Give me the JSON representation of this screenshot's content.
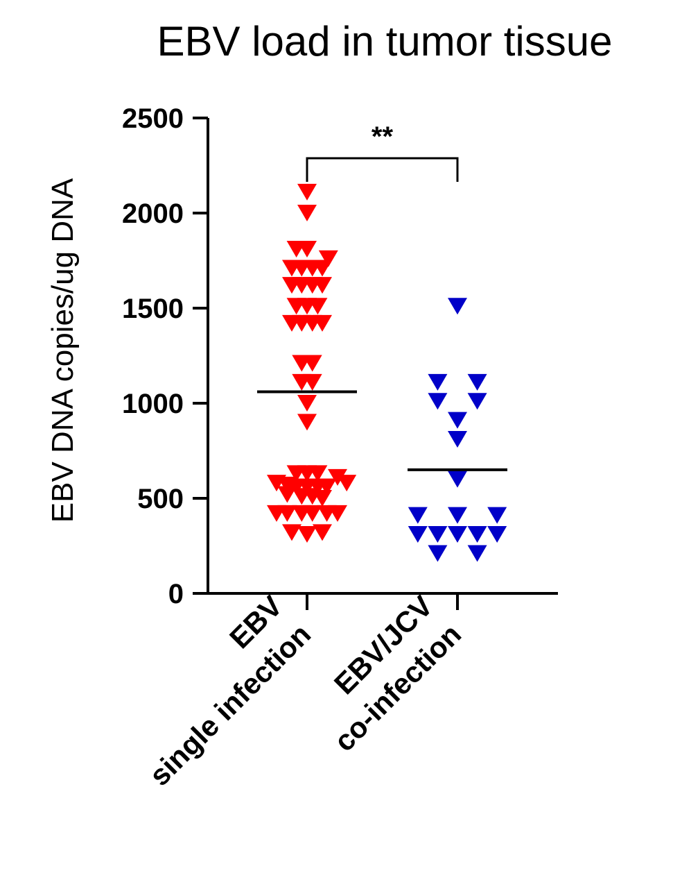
{
  "chart_data": {
    "type": "scatter",
    "title": "EBV load in tumor tissue",
    "ylabel": "EBV DNA copies/ug DNA",
    "xlabel": "",
    "ylim": [
      0,
      2500
    ],
    "yticks": [
      "0",
      "500",
      "1000",
      "1500",
      "2000",
      "2500"
    ],
    "categories": [
      [
        "EBV",
        "single infection"
      ],
      [
        "EBV/JCV",
        "co-infection"
      ]
    ],
    "grid": false,
    "marker": "triangle-down",
    "significance": {
      "label": "**",
      "between": [
        0,
        1
      ]
    },
    "series": [
      {
        "color": "#ff0000",
        "mean": 1060,
        "points": [
          [
            0.0,
            2110
          ],
          [
            0.0,
            2000
          ],
          [
            -0.07,
            1810
          ],
          [
            0.0,
            1810
          ],
          [
            0.14,
            1760
          ],
          [
            -0.1,
            1710
          ],
          [
            -0.035,
            1710
          ],
          [
            0.035,
            1710
          ],
          [
            0.1,
            1710
          ],
          [
            -0.1,
            1620
          ],
          [
            -0.035,
            1620
          ],
          [
            0.035,
            1620
          ],
          [
            0.1,
            1620
          ],
          [
            -0.07,
            1510
          ],
          [
            0.0,
            1510
          ],
          [
            0.07,
            1510
          ],
          [
            -0.1,
            1420
          ],
          [
            -0.035,
            1420
          ],
          [
            0.035,
            1420
          ],
          [
            0.1,
            1420
          ],
          [
            -0.035,
            1210
          ],
          [
            0.035,
            1210
          ],
          [
            -0.035,
            1110
          ],
          [
            0.035,
            1110
          ],
          [
            0.0,
            1000
          ],
          [
            0.0,
            900
          ],
          [
            -0.07,
            630
          ],
          [
            0.0,
            630
          ],
          [
            0.07,
            630
          ],
          [
            0.2,
            610
          ],
          [
            -0.2,
            580
          ],
          [
            -0.13,
            570
          ],
          [
            -0.07,
            560
          ],
          [
            0.0,
            560
          ],
          [
            0.07,
            560
          ],
          [
            0.13,
            560
          ],
          [
            0.26,
            580
          ],
          [
            -0.13,
            520
          ],
          [
            -0.035,
            510
          ],
          [
            0.035,
            510
          ],
          [
            0.1,
            500
          ],
          [
            -0.2,
            420
          ],
          [
            -0.13,
            420
          ],
          [
            -0.035,
            420
          ],
          [
            0.035,
            420
          ],
          [
            0.13,
            420
          ],
          [
            0.2,
            420
          ],
          [
            -0.1,
            320
          ],
          [
            0.0,
            310
          ],
          [
            0.1,
            320
          ]
        ]
      },
      {
        "color": "#0000c8",
        "mean": 650,
        "points": [
          [
            0.0,
            1510
          ],
          [
            -0.13,
            1110
          ],
          [
            0.13,
            1110
          ],
          [
            -0.13,
            1010
          ],
          [
            0.13,
            1010
          ],
          [
            0.0,
            910
          ],
          [
            0.0,
            810
          ],
          [
            0.0,
            600
          ],
          [
            -0.26,
            410
          ],
          [
            0.0,
            410
          ],
          [
            0.26,
            410
          ],
          [
            -0.26,
            310
          ],
          [
            -0.13,
            310
          ],
          [
            0.0,
            310
          ],
          [
            0.13,
            310
          ],
          [
            0.26,
            310
          ],
          [
            -0.13,
            210
          ],
          [
            0.13,
            210
          ]
        ]
      }
    ]
  }
}
